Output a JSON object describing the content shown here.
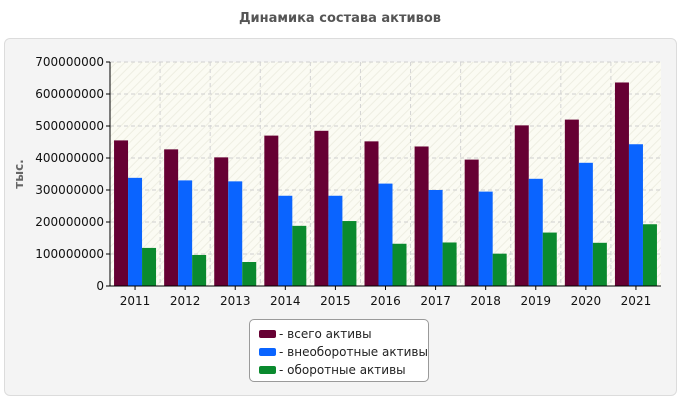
{
  "title": "Динамика состава активов",
  "colors": {
    "total": "#660033",
    "noncurrent": "#0a64ff",
    "current": "#0a8a2e"
  },
  "legend": {
    "total": "- всего активы",
    "noncurrent": "- внеоборотные активы",
    "current": "- оборотные активы"
  },
  "chart_data": {
    "type": "bar",
    "title": "Динамика состава активов",
    "xlabel": "",
    "ylabel": "тыс.",
    "ylim": [
      0,
      700000000
    ],
    "yticks": [
      "0",
      "100000000",
      "200000000",
      "300000000",
      "400000000",
      "500000000",
      "600000000",
      "700000000"
    ],
    "grid": true,
    "legend_position": "bottom",
    "categories": [
      "2011",
      "2012",
      "2013",
      "2014",
      "2015",
      "2016",
      "2017",
      "2018",
      "2019",
      "2020",
      "2021"
    ],
    "series": [
      {
        "name": "всего активы",
        "color": "#660033",
        "values": [
          455000000,
          427000000,
          402000000,
          470000000,
          485000000,
          452000000,
          436000000,
          395000000,
          502000000,
          520000000,
          636000000
        ]
      },
      {
        "name": "внеоборотные активы",
        "color": "#0a64ff",
        "values": [
          338000000,
          330000000,
          327000000,
          282000000,
          282000000,
          320000000,
          300000000,
          295000000,
          335000000,
          385000000,
          443000000
        ]
      },
      {
        "name": "оборотные активы",
        "color": "#0a8a2e",
        "values": [
          119000000,
          97000000,
          75000000,
          188000000,
          203000000,
          132000000,
          136000000,
          101000000,
          167000000,
          135000000,
          193000000
        ]
      }
    ]
  }
}
